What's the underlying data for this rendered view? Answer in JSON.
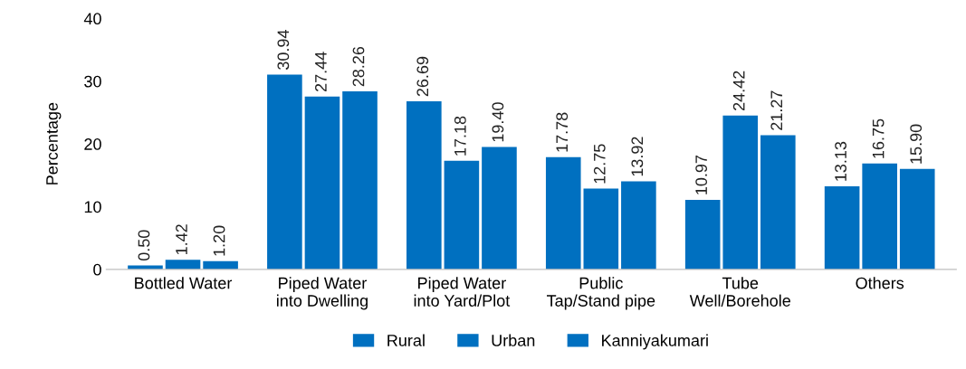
{
  "chart_data": {
    "type": "bar",
    "ylabel": "Percentage",
    "categories": [
      "Bottled Water",
      "Piped Water\ninto Dwelling",
      "Piped Water\ninto Yard/Plot",
      "Public\nTap/Stand pipe",
      "Tube\nWell/Borehole",
      "Others"
    ],
    "series": [
      {
        "name": "Rural",
        "color": "#0070c0",
        "values": [
          0.5,
          30.94,
          26.69,
          17.78,
          10.97,
          13.13
        ],
        "value_labels": [
          "0.50",
          "30.94",
          "26.69",
          "17.78",
          "10.97",
          "13.13"
        ]
      },
      {
        "name": "Urban",
        "color": "#0070c0",
        "values": [
          1.42,
          27.44,
          17.18,
          12.75,
          24.42,
          16.75
        ],
        "value_labels": [
          "1.42",
          "27.44",
          "17.18",
          "12.75",
          "24.42",
          "16.75"
        ]
      },
      {
        "name": "Kanniyakumari",
        "color": "#0070c0",
        "values": [
          1.2,
          28.26,
          19.4,
          13.92,
          21.27,
          15.9
        ],
        "value_labels": [
          "1.20",
          "28.26",
          "19.40",
          "13.92",
          "21.27",
          "15.90"
        ]
      }
    ],
    "ylim": [
      0,
      40
    ],
    "yticks": [
      0,
      10,
      20,
      30,
      40
    ],
    "grid": false,
    "legend": "bottom"
  }
}
